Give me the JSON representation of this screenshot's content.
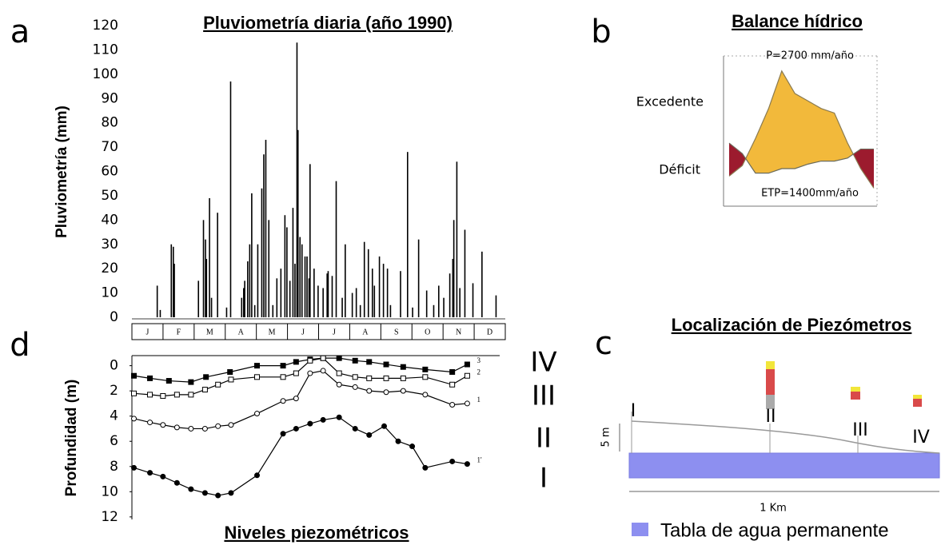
{
  "chart_data": [
    {
      "type": "bar",
      "panel": "a",
      "title": "Pluviometría diaria (año 1990)",
      "y_label": "Pluviometría (mm)",
      "months": [
        "J",
        "F",
        "M",
        "A",
        "M",
        "J",
        "J",
        "A",
        "S",
        "O",
        "N",
        "D"
      ],
      "x": [
        22,
        25,
        36,
        38,
        39,
        63,
        68,
        70,
        71,
        74,
        76,
        82,
        91,
        95,
        106,
        108,
        109,
        112,
        114,
        116,
        119,
        122,
        126,
        128,
        130,
        133,
        137,
        141,
        145,
        149,
        151,
        154,
        157,
        159,
        161,
        162,
        164,
        166,
        169,
        171,
        173,
        174,
        178,
        182,
        187,
        191,
        192,
        196,
        200,
        206,
        209,
        216,
        220,
        224,
        228,
        232,
        236,
        238,
        243,
        247,
        251,
        254,
        264,
        271,
        276,
        282,
        290,
        297,
        302,
        307,
        313,
        316,
        317,
        320,
        323,
        328,
        336,
        345,
        359
      ],
      "values": [
        13,
        3,
        30,
        29,
        22,
        15,
        40,
        32,
        24,
        49,
        8,
        43,
        4,
        97,
        8,
        12,
        15,
        23,
        30,
        51,
        5,
        30,
        53,
        67,
        73,
        40,
        5,
        16,
        20,
        42,
        37,
        15,
        45,
        22,
        113,
        77,
        33,
        30,
        25,
        25,
        16,
        63,
        20,
        13,
        12,
        18,
        19,
        17,
        56,
        8,
        30,
        10,
        12,
        5,
        31,
        28,
        20,
        13,
        25,
        22,
        20,
        5,
        19,
        68,
        4,
        32,
        11,
        5,
        13,
        8,
        18,
        24,
        40,
        64,
        12,
        36,
        14,
        27,
        9
      ],
      "color": "#000000",
      "xlim": [
        0,
        365
      ],
      "ylim": [
        0,
        120
      ],
      "yticks": [
        0,
        10,
        20,
        30,
        40,
        50,
        60,
        70,
        80,
        90,
        100,
        110,
        120
      ],
      "grid": false
    },
    {
      "type": "area",
      "panel": "b",
      "title": "Balance hídrico",
      "annotations": [
        "Excedente",
        "Déficit"
      ],
      "x": [
        1,
        2,
        3,
        4,
        5,
        6,
        7,
        8,
        9,
        10,
        11,
        12
      ],
      "xlim": [
        1,
        12
      ],
      "ylim": [
        0,
        100
      ],
      "surplus_color": "#f2b93b",
      "deficit_color": "#9c1b2e",
      "series": [
        {
          "name": "P=2700 mm/año",
          "color": "#8a7a50",
          "values": [
            20,
            27,
            45,
            65,
            90,
            75,
            70,
            65,
            62,
            42,
            25,
            12
          ]
        },
        {
          "name": "ETP=1400mm/año",
          "color": "#6b6b5a",
          "values": [
            42,
            35,
            22,
            22,
            25,
            25,
            28,
            30,
            30,
            32,
            38,
            38
          ]
        }
      ]
    },
    {
      "type": "line",
      "panel": "d",
      "title": "Niveles piezométricos",
      "y_label": "Profundidad (m)",
      "xlim": [
        0,
        365
      ],
      "ylim": [
        -0.8,
        12.2
      ],
      "y_inverted": true,
      "yticks": [
        0,
        2,
        4,
        6,
        8,
        10,
        12
      ],
      "grid": false,
      "series": [
        {
          "name": "3",
          "piezometer": "IV",
          "marker": "square-filled",
          "color": "#000000",
          "x": [
            2,
            18,
            37,
            59,
            74,
            98,
            125,
            151,
            164,
            178,
            191,
            207,
            223,
            237,
            254,
            271,
            293,
            320,
            335
          ],
          "values": [
            0.8,
            1.0,
            1.2,
            1.3,
            0.9,
            0.5,
            0.0,
            0.0,
            -0.3,
            -0.5,
            -0.6,
            -0.6,
            -0.4,
            -0.3,
            -0.1,
            0.1,
            0.3,
            0.5,
            -0.1
          ]
        },
        {
          "name": "2",
          "piezometer": "III",
          "marker": "square-open",
          "color": "#000000",
          "x": [
            2,
            18,
            31,
            45,
            59,
            73,
            86,
            99,
            125,
            151,
            164,
            178,
            191,
            207,
            223,
            237,
            254,
            271,
            293,
            320,
            335
          ],
          "values": [
            2.2,
            2.3,
            2.4,
            2.3,
            2.3,
            1.9,
            1.5,
            1.1,
            0.9,
            0.9,
            0.6,
            -0.4,
            -0.6,
            0.6,
            0.9,
            1.0,
            1.0,
            1.0,
            0.9,
            1.5,
            0.8
          ]
        },
        {
          "name": "1",
          "piezometer": "II",
          "marker": "circle-open",
          "color": "#000000",
          "x": [
            2,
            18,
            31,
            45,
            59,
            73,
            86,
            99,
            125,
            151,
            164,
            178,
            191,
            207,
            223,
            237,
            254,
            271,
            293,
            320,
            335
          ],
          "values": [
            4.2,
            4.5,
            4.7,
            4.9,
            5.0,
            5.0,
            4.8,
            4.7,
            3.8,
            2.8,
            2.6,
            0.6,
            0.4,
            1.5,
            1.7,
            2.0,
            2.1,
            2.0,
            2.3,
            3.1,
            3.0
          ]
        },
        {
          "name": "1'",
          "piezometer": "I",
          "marker": "circle-filled",
          "color": "#000000",
          "x": [
            2,
            18,
            31,
            45,
            59,
            73,
            86,
            99,
            125,
            151,
            164,
            178,
            191,
            207,
            223,
            237,
            252,
            266,
            280,
            293,
            320,
            335
          ],
          "values": [
            8.1,
            8.5,
            8.8,
            9.3,
            9.8,
            10.1,
            10.3,
            10.1,
            8.7,
            5.4,
            5.0,
            4.6,
            4.3,
            4.1,
            5.0,
            5.5,
            4.8,
            6.0,
            6.4,
            8.1,
            7.6,
            7.8
          ]
        }
      ]
    }
  ],
  "location_diagram": {
    "panel": "c",
    "title": "Localización de Piezómetros",
    "piezometers": [
      "I",
      "II",
      "III",
      "IV"
    ],
    "vertical_scale": "5 m",
    "horizontal_scale": "1 Km",
    "legend": "Tabla de agua permanente"
  }
}
